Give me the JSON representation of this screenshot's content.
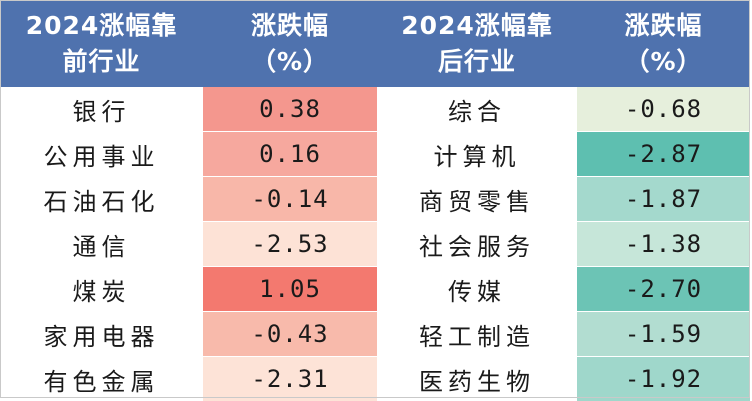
{
  "headers": {
    "top_industry": [
      "2024涨幅靠",
      "前行业"
    ],
    "top_change": [
      "涨跌幅",
      "（%）"
    ],
    "bottom_industry": [
      "2024涨幅靠",
      "后行业"
    ],
    "bottom_change": [
      "涨跌幅",
      "（%）"
    ]
  },
  "rows": [
    {
      "top_name": "银行",
      "top_value": "0.38",
      "bottom_name": "综合",
      "bottom_value": "-0.68"
    },
    {
      "top_name": "公用事业",
      "top_value": "0.16",
      "bottom_name": "计算机",
      "bottom_value": "-2.87"
    },
    {
      "top_name": "石油石化",
      "top_value": "-0.14",
      "bottom_name": "商贸零售",
      "bottom_value": "-1.87"
    },
    {
      "top_name": "通信",
      "top_value": "-2.53",
      "bottom_name": "社会服务",
      "bottom_value": "-1.38"
    },
    {
      "top_name": "煤炭",
      "top_value": "1.05",
      "bottom_name": "传媒",
      "bottom_value": "-2.70"
    },
    {
      "top_name": "家用电器",
      "top_value": "-0.43",
      "bottom_name": "轻工制造",
      "bottom_value": "-1.59"
    },
    {
      "top_name": "有色金属",
      "top_value": "-2.31",
      "bottom_name": "医药生物",
      "bottom_value": "-1.92"
    }
  ],
  "colors": {
    "header_bg": "#4f72ae",
    "top_value_cells": [
      "#f4978e",
      "#f6a89e",
      "#f8b7a9",
      "#fde2d6",
      "#f3796f",
      "#f8baab",
      "#fde3d7"
    ],
    "bottom_value_cells": [
      "#e6efdc",
      "#5ebfb0",
      "#a4d9cd",
      "#c6e6d9",
      "#6cc4b5",
      "#b2ddd1",
      "#9fd7cb"
    ]
  }
}
